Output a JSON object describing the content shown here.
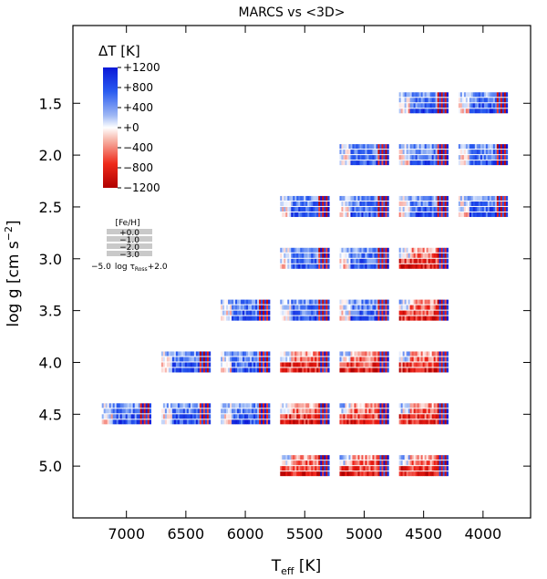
{
  "chart_data": {
    "type": "heatmap",
    "title": "MARCS vs <3D>",
    "xlabel_main": "T",
    "xlabel_sub": "eff",
    "xlabel_unit": " [K]",
    "ylabel_main": "log g  [cm s",
    "ylabel_sup": "−2",
    "ylabel_end": "]",
    "x_range": [
      7450,
      3600
    ],
    "y_range": [
      0.75,
      5.5
    ],
    "x_ticks": [
      7000,
      6500,
      6000,
      5500,
      5000,
      4500,
      4000
    ],
    "y_ticks": [
      1.5,
      2.0,
      2.5,
      3.0,
      3.5,
      4.0,
      4.5,
      5.0
    ],
    "y_tick_labels": [
      "1.5",
      "2.0",
      "2.5",
      "3.0",
      "3.5",
      "4.0",
      "4.5",
      "5.0"
    ],
    "colorbar": {
      "title": "ΔT [K]",
      "range": [
        -1200,
        1200
      ],
      "labels": [
        "+1200",
        "+800",
        "+400",
        "+0",
        "−400",
        "−800",
        "−1200"
      ],
      "label_values": [
        1200,
        800,
        400,
        0,
        -400,
        -800,
        -1200
      ]
    },
    "key": {
      "title": "[Fe/H]",
      "metallicities": [
        "+0.0",
        "−1.0",
        "−2.0",
        "−3.0"
      ],
      "axis_label": "−5.0",
      "axis_mid": "log τ",
      "axis_sub": "Ross",
      "axis_end": "+2.0"
    },
    "models": [
      {
        "teff": 4500,
        "logg": 1.5
      },
      {
        "teff": 4000,
        "logg": 1.5
      },
      {
        "teff": 5000,
        "logg": 2.0
      },
      {
        "teff": 4500,
        "logg": 2.0
      },
      {
        "teff": 4000,
        "logg": 2.0
      },
      {
        "teff": 5500,
        "logg": 2.5
      },
      {
        "teff": 5000,
        "logg": 2.5
      },
      {
        "teff": 4500,
        "logg": 2.5
      },
      {
        "teff": 4000,
        "logg": 2.5
      },
      {
        "teff": 5500,
        "logg": 3.0
      },
      {
        "teff": 5000,
        "logg": 3.0
      },
      {
        "teff": 4500,
        "logg": 3.0
      },
      {
        "teff": 6000,
        "logg": 3.5
      },
      {
        "teff": 5500,
        "logg": 3.5
      },
      {
        "teff": 5000,
        "logg": 3.5
      },
      {
        "teff": 4500,
        "logg": 3.5
      },
      {
        "teff": 6500,
        "logg": 4.0
      },
      {
        "teff": 6000,
        "logg": 4.0
      },
      {
        "teff": 5500,
        "logg": 4.0
      },
      {
        "teff": 5000,
        "logg": 4.0
      },
      {
        "teff": 4500,
        "logg": 4.0
      },
      {
        "teff": 7000,
        "logg": 4.5
      },
      {
        "teff": 6500,
        "logg": 4.5
      },
      {
        "teff": 6000,
        "logg": 4.5
      },
      {
        "teff": 5500,
        "logg": 4.5
      },
      {
        "teff": 5000,
        "logg": 4.5
      },
      {
        "teff": 4500,
        "logg": 4.5
      },
      {
        "teff": 5500,
        "logg": 5.0
      },
      {
        "teff": 5000,
        "logg": 5.0
      },
      {
        "teff": 4500,
        "logg": 5.0
      }
    ]
  }
}
